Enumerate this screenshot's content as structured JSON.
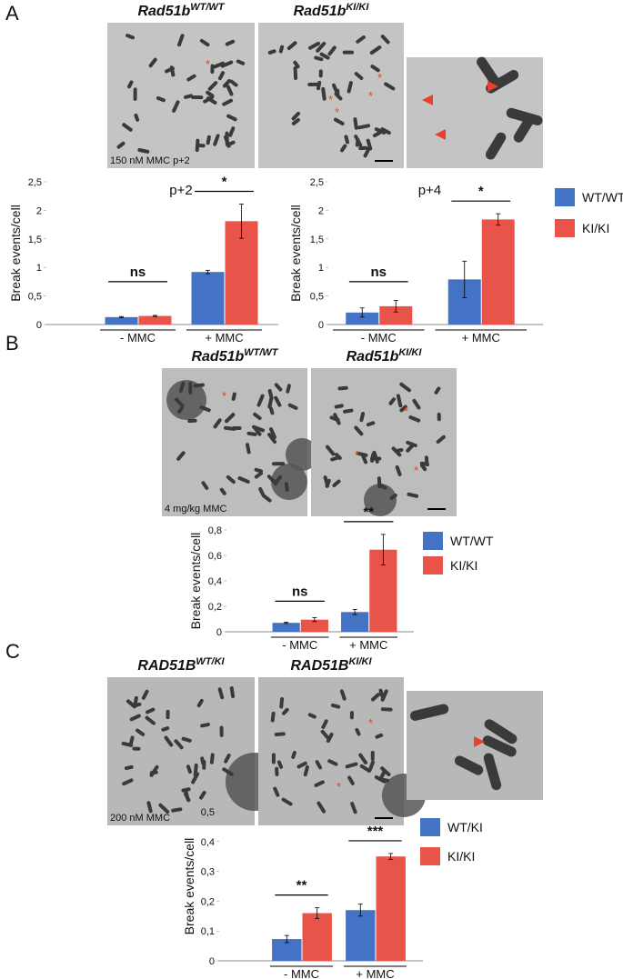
{
  "panels": [
    {
      "letter": "A",
      "images": [
        {
          "label": {
            "base": "Rad51b",
            "sup": "WT/WT"
          },
          "caption": "150 nM MMC p+2"
        },
        {
          "label": {
            "base": "Rad51b",
            "sup": "KI/KI"
          }
        }
      ]
    },
    {
      "letter": "B",
      "images": [
        {
          "label": {
            "base": "Rad51b",
            "sup": "WT/WT"
          },
          "caption": "4 mg/kg MMC"
        },
        {
          "label": {
            "base": "Rad51b",
            "sup": "KI/KI"
          }
        }
      ]
    },
    {
      "letter": "C",
      "images": [
        {
          "label": {
            "base": "RAD51B",
            "sup": "WT/KI"
          },
          "caption": "200 nM MMC"
        },
        {
          "label": {
            "base": "RAD51B",
            "sup": "KI/KI"
          }
        }
      ]
    }
  ],
  "chart_data": [
    {
      "type": "bar",
      "title": "p+2",
      "y_label": "Break events/cell",
      "categories": [
        "- MMC",
        "+ MMC"
      ],
      "significance": [
        "ns",
        "*"
      ],
      "series": [
        {
          "color": "#4472c4",
          "values": [
            0.13,
            0.92
          ],
          "errors": [
            0.01,
            0.03
          ]
        },
        {
          "color": "#e8534a",
          "values": [
            0.15,
            1.81
          ],
          "errors": [
            0.01,
            0.3
          ]
        }
      ],
      "ylim": [
        0,
        2.5
      ],
      "yticks": [
        0,
        {
          "value": 0.5,
          "label": "0,5"
        },
        1,
        {
          "value": 1.5,
          "label": "1,5"
        },
        2,
        {
          "value": 2.5,
          "label": "2,5"
        }
      ],
      "legend": false
    },
    {
      "type": "bar",
      "title": "p+4",
      "y_label": "Break events/cell",
      "categories": [
        "- MMC",
        "+ MMC"
      ],
      "significance": [
        "ns",
        "*"
      ],
      "series": [
        {
          "name": "WT/WT",
          "color": "#4472c4",
          "values": [
            0.21,
            0.79
          ],
          "errors": [
            0.08,
            0.32
          ]
        },
        {
          "name": "KI/KI",
          "color": "#e8534a",
          "values": [
            0.32,
            1.84
          ],
          "errors": [
            0.1,
            0.1
          ]
        }
      ],
      "ylim": [
        0,
        2.5
      ],
      "yticks": [
        0,
        {
          "value": 0.5,
          "label": "0,5"
        },
        1,
        {
          "value": 1.5,
          "label": "1,5"
        },
        2,
        {
          "value": 2.5,
          "label": "2,5"
        }
      ],
      "legend": true
    },
    {
      "type": "bar",
      "y_label": "Break events/cell",
      "categories": [
        "- MMC",
        "+ MMC"
      ],
      "significance": [
        "ns",
        "**"
      ],
      "series": [
        {
          "name": "WT/WT",
          "color": "#4472c4",
          "values": [
            0.07,
            0.155
          ],
          "errors": [
            0.005,
            0.02
          ]
        },
        {
          "name": "KI/KI",
          "color": "#e8534a",
          "values": [
            0.095,
            0.645
          ],
          "errors": [
            0.015,
            0.12
          ]
        }
      ],
      "ylim": [
        0,
        0.8
      ],
      "yticks": [
        0,
        {
          "value": 0.2,
          "label": "0,2"
        },
        {
          "value": 0.4,
          "label": "0,4"
        },
        {
          "value": 0.6,
          "label": "0,6"
        },
        {
          "value": 0.8,
          "label": "0,8"
        }
      ],
      "legend": true
    },
    {
      "type": "bar",
      "y_label": "Break events/cell",
      "categories": [
        "- MMC",
        "+ MMC"
      ],
      "significance": [
        "**",
        "***"
      ],
      "series": [
        {
          "name": "WT/KI",
          "color": "#4472c4",
          "values": [
            0.073,
            0.17
          ],
          "errors": [
            0.012,
            0.02
          ]
        },
        {
          "name": "KI/KI",
          "color": "#e8534a",
          "values": [
            0.16,
            0.35
          ],
          "errors": [
            0.018,
            0.01
          ]
        }
      ],
      "ylim": [
        0,
        0.5
      ],
      "yticks": [
        0,
        {
          "value": 0.1,
          "label": "0,1"
        },
        {
          "value": 0.2,
          "label": "0,2"
        },
        {
          "value": 0.3,
          "label": "0,3"
        },
        {
          "value": 0.4,
          "label": "0,4"
        },
        {
          "value": 0.5,
          "label": "0,5"
        }
      ],
      "legend": true
    }
  ]
}
